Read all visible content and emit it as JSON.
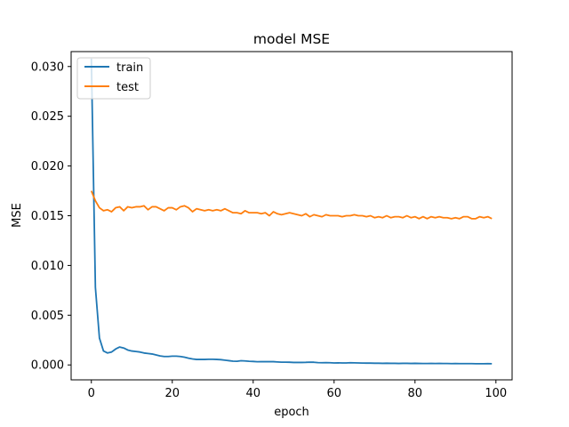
{
  "chart_data": {
    "type": "line",
    "title": "model MSE",
    "xlabel": "epoch",
    "ylabel": "MSE",
    "xlim": [
      -5,
      104
    ],
    "ylim": [
      -0.0015,
      0.0315
    ],
    "xticks": [
      0,
      20,
      40,
      60,
      80,
      100
    ],
    "xtick_labels": [
      "0",
      "20",
      "40",
      "60",
      "80",
      "100"
    ],
    "yticks": [
      0.0,
      0.005,
      0.01,
      0.015,
      0.02,
      0.025,
      0.03
    ],
    "ytick_labels": [
      "0.000",
      "0.005",
      "0.010",
      "0.015",
      "0.020",
      "0.025",
      "0.030"
    ],
    "grid": false,
    "legend_position": "upper-left",
    "series": [
      {
        "name": "train",
        "color": "#1f77b4",
        "x": [
          0,
          1,
          2,
          3,
          4,
          5,
          6,
          7,
          8,
          9,
          10,
          11,
          12,
          13,
          14,
          15,
          16,
          17,
          18,
          19,
          20,
          21,
          22,
          23,
          24,
          25,
          26,
          27,
          28,
          29,
          30,
          31,
          32,
          33,
          34,
          35,
          36,
          37,
          38,
          39,
          40,
          41,
          42,
          43,
          44,
          45,
          46,
          47,
          48,
          49,
          50,
          51,
          52,
          53,
          54,
          55,
          56,
          57,
          58,
          59,
          60,
          61,
          62,
          63,
          64,
          65,
          66,
          67,
          68,
          69,
          70,
          71,
          72,
          73,
          74,
          75,
          76,
          77,
          78,
          79,
          80,
          81,
          82,
          83,
          84,
          85,
          86,
          87,
          88,
          89,
          90,
          91,
          92,
          93,
          94,
          95,
          96,
          97,
          98,
          99
        ],
        "values": [
          0.0308,
          0.0078,
          0.0027,
          0.0014,
          0.0012,
          0.0013,
          0.0016,
          0.0018,
          0.0017,
          0.0015,
          0.0014,
          0.00135,
          0.0013,
          0.0012,
          0.00115,
          0.0011,
          0.001,
          0.0009,
          0.00085,
          0.00085,
          0.00088,
          0.00088,
          0.00085,
          0.00078,
          0.00068,
          0.0006,
          0.00055,
          0.00055,
          0.00055,
          0.00057,
          0.00057,
          0.00055,
          0.00053,
          0.00048,
          0.00043,
          0.00038,
          0.00037,
          0.00042,
          0.0004,
          0.00037,
          0.00035,
          0.00032,
          0.00033,
          0.00033,
          0.00033,
          0.00033,
          0.0003,
          0.00028,
          0.00028,
          0.00027,
          0.00025,
          0.00025,
          0.00025,
          0.00026,
          0.00028,
          0.00027,
          0.00023,
          0.00022,
          0.00023,
          0.00022,
          0.0002,
          0.00021,
          0.0002,
          0.0002,
          0.00022,
          0.00021,
          0.0002,
          0.00019,
          0.00018,
          0.00018,
          0.00017,
          0.00017,
          0.00016,
          0.00017,
          0.00016,
          0.00016,
          0.00015,
          0.00016,
          0.00016,
          0.00015,
          0.00016,
          0.00015,
          0.00014,
          0.00014,
          0.00015,
          0.00014,
          0.00015,
          0.00014,
          0.00014,
          0.00013,
          0.00014,
          0.00013,
          0.00013,
          0.00013,
          0.00013,
          0.00012,
          0.00012,
          0.00012,
          0.00013,
          0.00012
        ]
      },
      {
        "name": "test",
        "color": "#ff7f0e",
        "x": [
          0,
          1,
          2,
          3,
          4,
          5,
          6,
          7,
          8,
          9,
          10,
          11,
          12,
          13,
          14,
          15,
          16,
          17,
          18,
          19,
          20,
          21,
          22,
          23,
          24,
          25,
          26,
          27,
          28,
          29,
          30,
          31,
          32,
          33,
          34,
          35,
          36,
          37,
          38,
          39,
          40,
          41,
          42,
          43,
          44,
          45,
          46,
          47,
          48,
          49,
          50,
          51,
          52,
          53,
          54,
          55,
          56,
          57,
          58,
          59,
          60,
          61,
          62,
          63,
          64,
          65,
          66,
          67,
          68,
          69,
          70,
          71,
          72,
          73,
          74,
          75,
          76,
          77,
          78,
          79,
          80,
          81,
          82,
          83,
          84,
          85,
          86,
          87,
          88,
          89,
          90,
          91,
          92,
          93,
          94,
          95,
          96,
          97,
          98,
          99
        ],
        "values": [
          0.0175,
          0.0165,
          0.0158,
          0.0155,
          0.0156,
          0.0154,
          0.0158,
          0.0159,
          0.0155,
          0.0159,
          0.0158,
          0.0159,
          0.0159,
          0.016,
          0.0156,
          0.0159,
          0.0159,
          0.0157,
          0.0155,
          0.0158,
          0.0158,
          0.0156,
          0.0159,
          0.016,
          0.0158,
          0.0154,
          0.0157,
          0.0156,
          0.0155,
          0.0156,
          0.0155,
          0.0156,
          0.0155,
          0.0157,
          0.0155,
          0.0153,
          0.0153,
          0.0152,
          0.0155,
          0.0153,
          0.0153,
          0.0153,
          0.0152,
          0.0153,
          0.015,
          0.0154,
          0.0152,
          0.0151,
          0.0152,
          0.0153,
          0.0152,
          0.0151,
          0.015,
          0.0152,
          0.0149,
          0.0151,
          0.015,
          0.0149,
          0.0151,
          0.015,
          0.015,
          0.015,
          0.0149,
          0.015,
          0.015,
          0.0151,
          0.015,
          0.015,
          0.0149,
          0.015,
          0.0148,
          0.0149,
          0.0148,
          0.015,
          0.0148,
          0.0149,
          0.0149,
          0.0148,
          0.015,
          0.0148,
          0.0149,
          0.0147,
          0.0149,
          0.0147,
          0.0149,
          0.0148,
          0.0149,
          0.0148,
          0.0148,
          0.0147,
          0.0148,
          0.0147,
          0.0149,
          0.0149,
          0.0147,
          0.0147,
          0.0149,
          0.0148,
          0.0149,
          0.0147
        ]
      }
    ]
  }
}
